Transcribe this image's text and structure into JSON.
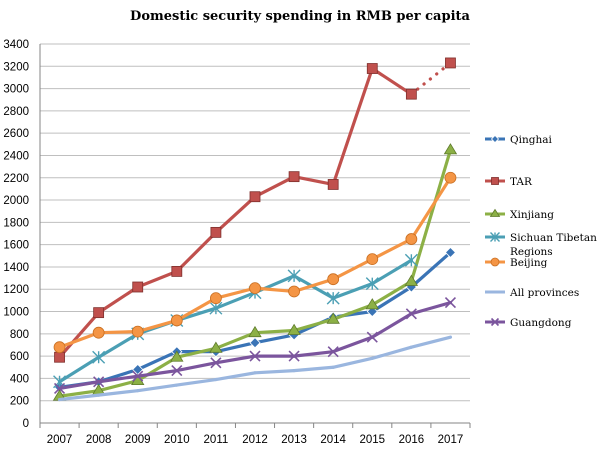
{
  "chart_data": {
    "type": "line",
    "title": "Domestic security spending in RMB per capita",
    "xlabel": "",
    "ylabel": "",
    "categories": [
      "2007",
      "2008",
      "2009",
      "2010",
      "2011",
      "2012",
      "2013",
      "2014",
      "2015",
      "2016",
      "2017"
    ],
    "ylim": [
      0,
      3400
    ],
    "yticks": [
      0,
      200,
      400,
      600,
      800,
      1000,
      1200,
      1400,
      1600,
      1800,
      2000,
      2200,
      2400,
      2600,
      2800,
      3000,
      3200,
      3400
    ],
    "grid": true,
    "legend_position": "right",
    "series": [
      {
        "name": "Qinghai",
        "color": "#3a74b6",
        "marker": "diamond",
        "values": [
          320,
          370,
          480,
          640,
          640,
          720,
          790,
          950,
          1000,
          1220,
          1530
        ]
      },
      {
        "name": "TAR",
        "color": "#c0504d",
        "marker": "square",
        "values": [
          590,
          990,
          1220,
          1360,
          1710,
          2030,
          2210,
          2140,
          3180,
          2950,
          3230
        ],
        "dotted_last_segment": true
      },
      {
        "name": "Xinjiang",
        "color": "#8cb046",
        "marker": "triangle",
        "values": [
          240,
          290,
          380,
          590,
          670,
          810,
          830,
          930,
          1060,
          1270,
          2450
        ]
      },
      {
        "name": "Sichuan Tibetan Regions",
        "color": "#4b9fb4",
        "marker": "star",
        "values": [
          370,
          590,
          800,
          920,
          1030,
          1170,
          1320,
          1120,
          1250,
          1460,
          null
        ]
      },
      {
        "name": "Beijing",
        "color": "#f49545",
        "marker": "circle",
        "values": [
          680,
          810,
          820,
          920,
          1120,
          1210,
          1180,
          1290,
          1470,
          1650,
          2200
        ]
      },
      {
        "name": "All provinces",
        "color": "#9ab6df",
        "marker": "none",
        "values": [
          210,
          250,
          290,
          340,
          390,
          450,
          470,
          500,
          580,
          680,
          770
        ]
      },
      {
        "name": "Guangdong",
        "color": "#7b559d",
        "marker": "x",
        "values": [
          310,
          370,
          420,
          470,
          540,
          600,
          600,
          640,
          770,
          980,
          1080
        ]
      }
    ]
  }
}
